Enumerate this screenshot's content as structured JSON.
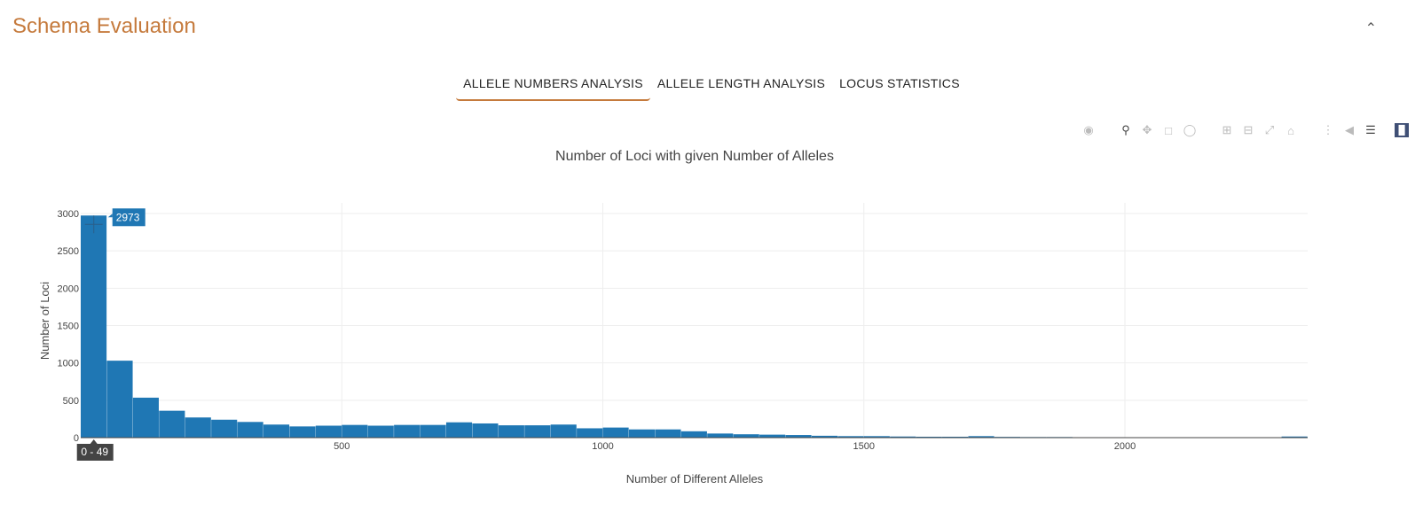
{
  "section": {
    "title": "Schema Evaluation",
    "collapse_icon": "chevron-up-icon"
  },
  "tabs": [
    {
      "label": "ALLELE NUMBERS ANALYSIS",
      "active": true
    },
    {
      "label": "ALLELE LENGTH ANALYSIS",
      "active": false
    },
    {
      "label": "LOCUS STATISTICS",
      "active": false
    }
  ],
  "modebar": [
    "camera-icon",
    "zoom-icon",
    "pan-icon",
    "box-select-icon",
    "lasso-select-icon",
    "zoom-in-icon",
    "zoom-out-icon",
    "autoscale-icon",
    "reset-axes-icon",
    "spike-lines-icon",
    "hover-closest-icon",
    "hover-compare-icon",
    "plotly-logo-icon"
  ],
  "chart_data": {
    "type": "bar",
    "title": "Number of Loci with given Number of Alleles",
    "xlabel": "Number of Different Alleles",
    "ylabel": "Number of Loci",
    "bin_width": 50,
    "xlim": [
      0,
      2350
    ],
    "ylim": [
      0,
      3000
    ],
    "xticks": [
      500,
      1000,
      1500,
      2000
    ],
    "yticks": [
      0,
      500,
      1000,
      1500,
      2000,
      2500,
      3000
    ],
    "color": "#1f77b4",
    "values": [
      2973,
      1030,
      535,
      360,
      270,
      240,
      210,
      175,
      150,
      160,
      170,
      160,
      170,
      170,
      205,
      190,
      165,
      165,
      175,
      125,
      135,
      110,
      110,
      85,
      55,
      45,
      40,
      35,
      25,
      20,
      20,
      15,
      12,
      12,
      20,
      10,
      8,
      8,
      6,
      6,
      5,
      5,
      4,
      4,
      4,
      4,
      15
    ],
    "hover": {
      "bin_label": "0 - 49",
      "value_label": "2973"
    },
    "grid": true
  }
}
